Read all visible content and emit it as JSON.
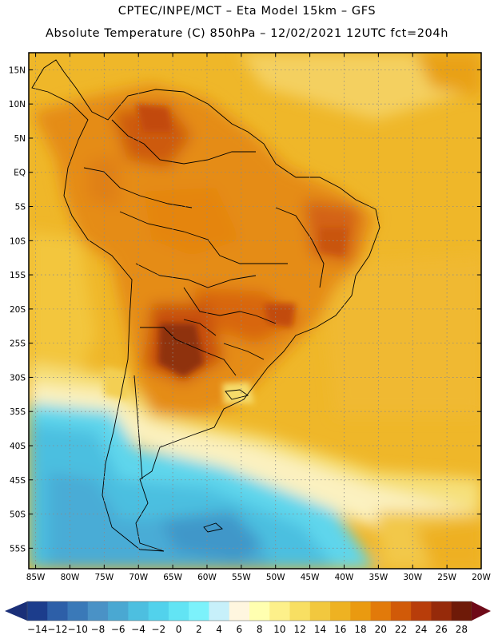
{
  "header": {
    "line1": "CPTEC/INPE/MCT –  Eta Model 15km – GFS",
    "line2": "Absolute Temperature (C) 850hPa – 12/02/2021 12UTC fct=204h"
  },
  "map": {
    "lat_labels": [
      "15N",
      "10N",
      "5N",
      "EQ",
      "5S",
      "10S",
      "15S",
      "20S",
      "25S",
      "30S",
      "35S",
      "40S",
      "45S",
      "50S",
      "55S"
    ],
    "lon_labels": [
      "85W",
      "80W",
      "75W",
      "70W",
      "65W",
      "60W",
      "55W",
      "50W",
      "45W",
      "40W",
      "35W",
      "30W",
      "25W",
      "20W"
    ],
    "lat_extent": [
      17.5,
      -58
    ],
    "lon_extent": [
      -86,
      -20
    ],
    "field_description": "Temperature at 850hPa in degrees C"
  },
  "colorbar": {
    "labels": [
      "-14",
      "-12",
      "-10",
      "-8",
      "-6",
      "-4",
      "-2",
      "0",
      "2",
      "4",
      "6",
      "8",
      "10",
      "12",
      "14",
      "16",
      "18",
      "20",
      "22",
      "24",
      "26",
      "28"
    ],
    "colors": [
      "#1c3d8c",
      "#2d5fa8",
      "#3a79b8",
      "#4a92c6",
      "#4aa8d2",
      "#4dbfe0",
      "#52d2ec",
      "#62e4f4",
      "#7cf2fb",
      "#c7f0fa",
      "#fff6df",
      "#ffffb0",
      "#fdf08a",
      "#f8df62",
      "#f2c83e",
      "#eeb222",
      "#ea9a10",
      "#e27a0a",
      "#d15a08",
      "#b83d0a",
      "#962a0a",
      "#6e1a08"
    ],
    "underflow_color": "#1a2f78",
    "overflow_color": "#6e0a18"
  }
}
